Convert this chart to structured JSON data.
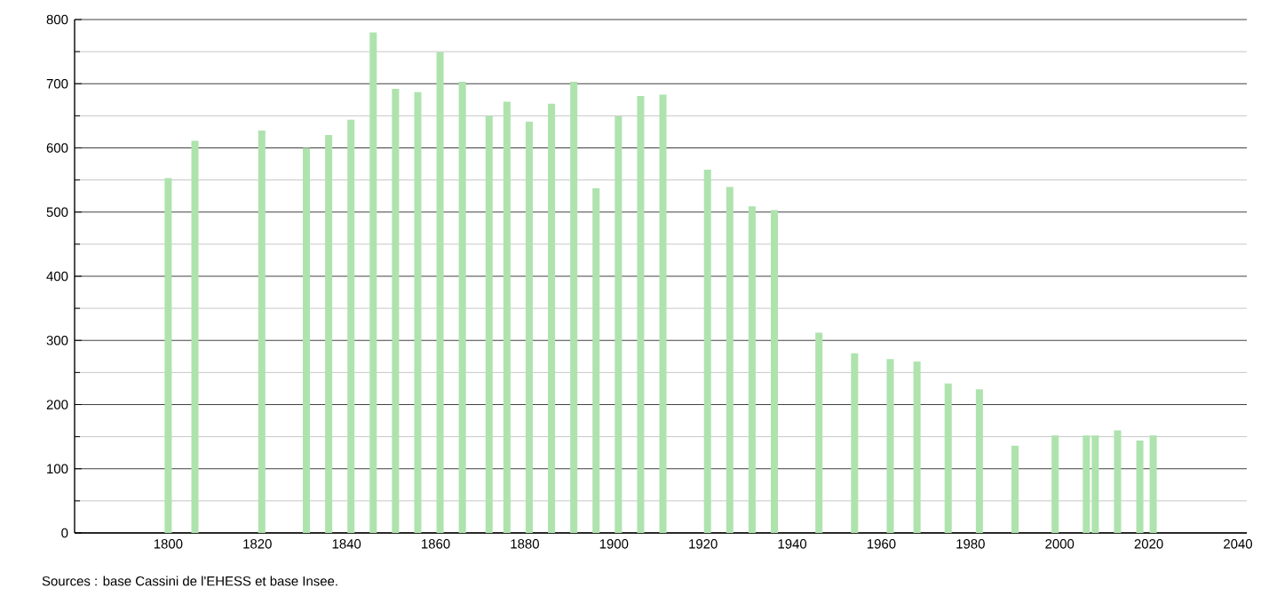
{
  "chart_data": {
    "type": "bar",
    "color": "#aee3ae",
    "x": [
      1800,
      1806,
      1821,
      1831,
      1836,
      1841,
      1846,
      1851,
      1856,
      1861,
      1866,
      1872,
      1876,
      1881,
      1886,
      1891,
      1896,
      1901,
      1906,
      1911,
      1921,
      1926,
      1931,
      1936,
      1946,
      1954,
      1962,
      1968,
      1975,
      1982,
      1990,
      1999,
      2006,
      2008,
      2013,
      2018,
      2021
    ],
    "values": [
      553,
      611,
      627,
      600,
      620,
      644,
      780,
      692,
      687,
      749,
      703,
      650,
      672,
      641,
      669,
      703,
      537,
      649,
      681,
      683,
      566,
      539,
      509,
      503,
      312,
      280,
      271,
      267,
      233,
      224,
      136,
      152,
      152,
      152,
      160,
      144,
      152
    ],
    "xlim": [
      1779,
      2042
    ],
    "ylim": [
      0,
      800
    ],
    "xticks": [
      1800,
      1820,
      1840,
      1860,
      1880,
      1900,
      1920,
      1940,
      1960,
      1980,
      2000,
      2020,
      2040
    ],
    "yticks": [
      0,
      {
        "value": 50,
        "label": null
      },
      100,
      {
        "value": 150,
        "label": null
      },
      200,
      {
        "value": 250,
        "label": null
      },
      300,
      {
        "value": 350,
        "label": null
      },
      400,
      {
        "value": 450,
        "label": null
      },
      500,
      {
        "value": 550,
        "label": null
      },
      600,
      {
        "value": 650,
        "label": null
      },
      700,
      {
        "value": 750,
        "label": null
      },
      800
    ],
    "grid": "y",
    "annotations": [
      "Sources : base Cassini de l'EHESS et base Insee."
    ]
  }
}
